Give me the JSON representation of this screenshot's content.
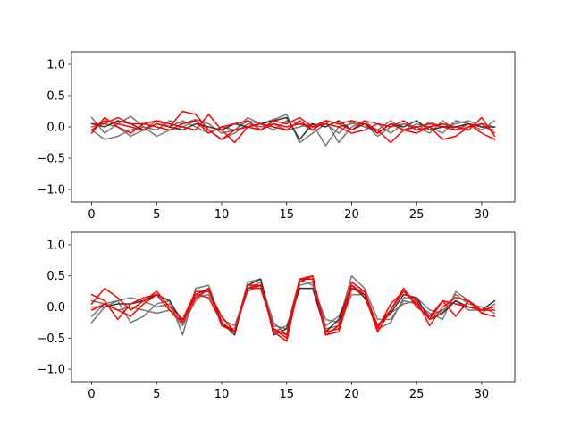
{
  "chart_data": [
    {
      "type": "line",
      "title": "",
      "xlabel": "",
      "ylabel": "",
      "xlim": [
        -1.55,
        32.55
      ],
      "ylim": [
        -1.2,
        1.2
      ],
      "xticks": [
        0,
        5,
        10,
        15,
        20,
        25,
        30
      ],
      "xtick_labels": [
        "0",
        "5",
        "10",
        "15",
        "20",
        "25",
        "30"
      ],
      "yticks": [
        -1.0,
        -0.5,
        0.0,
        0.5,
        1.0
      ],
      "ytick_labels": [
        "−1.0",
        "−0.5",
        "0.0",
        "0.5",
        "1.0"
      ],
      "grid": false,
      "x": [
        0,
        1,
        2,
        3,
        4,
        5,
        6,
        7,
        8,
        9,
        10,
        11,
        12,
        13,
        14,
        15,
        16,
        17,
        18,
        19,
        20,
        21,
        22,
        23,
        24,
        25,
        26,
        27,
        28,
        29,
        30,
        31
      ],
      "series": [
        {
          "color": "#777777",
          "values": [
            0.15,
            -0.1,
            0.05,
            0.17,
            0.0,
            -0.05,
            0.1,
            0.05,
            0.12,
            0.05,
            -0.1,
            -0.05,
            0.15,
            0.05,
            0.12,
            0.2,
            -0.25,
            -0.1,
            0.05,
            -0.1,
            0.08,
            0.0,
            -0.05,
            0.1,
            -0.05,
            0.05,
            0.0,
            -0.1,
            0.1,
            0.05,
            -0.05,
            0.1
          ]
        },
        {
          "color": "#777777",
          "values": [
            -0.05,
            -0.2,
            -0.15,
            -0.05,
            0.0,
            -0.15,
            -0.05,
            0.0,
            0.1,
            -0.05,
            -0.2,
            -0.1,
            0.05,
            0.0,
            0.05,
            -0.05,
            0.0,
            0.05,
            -0.3,
            0.0,
            0.05,
            0.05,
            -0.15,
            0.0,
            0.05,
            -0.05,
            0.08,
            0.0,
            0.05,
            0.1,
            0.0,
            -0.05
          ]
        },
        {
          "color": "#777777",
          "values": [
            0.0,
            0.05,
            0.0,
            -0.15,
            -0.05,
            0.1,
            0.0,
            0.1,
            0.0,
            -0.1,
            0.0,
            -0.05,
            0.1,
            0.05,
            -0.05,
            0.1,
            0.05,
            -0.05,
            0.1,
            -0.25,
            0.0,
            0.1,
            0.05,
            -0.1,
            0.05,
            0.0,
            -0.1,
            0.1,
            -0.05,
            0.0,
            0.05,
            0.0
          ]
        },
        {
          "color": "#333333",
          "values": [
            0.05,
            0.0,
            0.1,
            0.05,
            -0.05,
            0.05,
            0.0,
            -0.05,
            0.05,
            0.0,
            -0.05,
            0.05,
            0.0,
            0.05,
            0.1,
            0.15,
            -0.2,
            0.05,
            0.0,
            0.1,
            -0.05,
            0.05,
            -0.1,
            0.05,
            0.0,
            0.1,
            -0.05,
            0.0,
            0.0,
            0.05,
            0.0,
            0.0
          ]
        },
        {
          "color": "#ff0000",
          "values": [
            -0.05,
            0.1,
            0.05,
            0.0,
            -0.05,
            0.05,
            0.0,
            0.25,
            0.2,
            -0.05,
            -0.2,
            -0.05,
            0.0,
            0.05,
            0.0,
            -0.05,
            0.1,
            -0.05,
            0.1,
            0.05,
            0.1,
            0.05,
            -0.05,
            -0.25,
            -0.05,
            -0.1,
            0.0,
            -0.2,
            -0.15,
            0.0,
            0.05,
            -0.1
          ]
        },
        {
          "color": "#ff0000",
          "values": [
            0.05,
            0.05,
            0.15,
            0.05,
            0.05,
            0.1,
            0.05,
            0.0,
            -0.05,
            0.2,
            -0.05,
            -0.25,
            0.0,
            -0.05,
            0.1,
            0.05,
            0.15,
            0.0,
            0.05,
            0.0,
            -0.1,
            -0.05,
            0.05,
            0.0,
            0.1,
            -0.05,
            0.0,
            0.05,
            0.0,
            -0.05,
            0.15,
            -0.15
          ]
        },
        {
          "color": "#ff0000",
          "values": [
            -0.1,
            0.15,
            0.0,
            -0.1,
            0.05,
            0.0,
            -0.05,
            0.05,
            0.1,
            -0.1,
            0.0,
            0.05,
            0.1,
            -0.05,
            0.05,
            0.0,
            0.05,
            0.0,
            0.1,
            0.05,
            -0.05,
            0.1,
            -0.1,
            0.05,
            -0.05,
            0.0,
            0.05,
            0.0,
            -0.05,
            0.05,
            -0.1,
            -0.2
          ]
        }
      ]
    },
    {
      "type": "line",
      "title": "",
      "xlabel": "",
      "ylabel": "",
      "xlim": [
        -1.55,
        32.55
      ],
      "ylim": [
        -1.2,
        1.2
      ],
      "xticks": [
        0,
        5,
        10,
        15,
        20,
        25,
        30
      ],
      "xtick_labels": [
        "0",
        "5",
        "10",
        "15",
        "20",
        "25",
        "30"
      ],
      "yticks": [
        -1.0,
        -0.5,
        0.0,
        0.5,
        1.0
      ],
      "ytick_labels": [
        "−1.0",
        "−0.5",
        "0.0",
        "0.5",
        "1.0"
      ],
      "grid": false,
      "x": [
        0,
        1,
        2,
        3,
        4,
        5,
        6,
        7,
        8,
        9,
        10,
        11,
        12,
        13,
        14,
        15,
        16,
        17,
        18,
        19,
        20,
        21,
        22,
        23,
        24,
        25,
        26,
        27,
        28,
        29,
        30,
        31
      ],
      "series": [
        {
          "color": "#777777",
          "values": [
            -0.25,
            0.0,
            0.1,
            -0.25,
            -0.15,
            0.05,
            0.1,
            -0.45,
            0.3,
            0.35,
            -0.25,
            -0.4,
            0.4,
            0.45,
            -0.3,
            -0.35,
            0.45,
            0.35,
            -0.2,
            -0.25,
            0.5,
            0.3,
            -0.2,
            -0.2,
            0.1,
            0.05,
            -0.1,
            -0.2,
            0.25,
            0.1,
            -0.1,
            0.05
          ]
        },
        {
          "color": "#777777",
          "values": [
            0.1,
            0.05,
            0.1,
            0.15,
            0.1,
            0.0,
            0.05,
            -0.2,
            0.15,
            0.2,
            -0.2,
            -0.3,
            0.3,
            0.4,
            -0.25,
            -0.45,
            0.35,
            0.4,
            -0.3,
            -0.15,
            0.3,
            0.25,
            -0.3,
            -0.1,
            0.05,
            0.1,
            -0.15,
            -0.05,
            0.1,
            -0.05,
            -0.05,
            0.0
          ]
        },
        {
          "color": "#777777",
          "values": [
            -0.15,
            0.05,
            -0.05,
            0.0,
            -0.05,
            -0.1,
            -0.05,
            -0.3,
            0.1,
            0.3,
            -0.3,
            -0.35,
            0.25,
            0.35,
            -0.4,
            -0.3,
            0.3,
            0.3,
            -0.35,
            -0.3,
            0.2,
            0.2,
            -0.35,
            -0.25,
            0.15,
            0.15,
            -0.05,
            -0.1,
            0.2,
            0.05,
            0.0,
            -0.1
          ]
        },
        {
          "color": "#333333",
          "values": [
            0.0,
            0.0,
            0.05,
            0.05,
            0.1,
            0.2,
            0.1,
            -0.25,
            0.2,
            0.3,
            -0.25,
            -0.45,
            0.35,
            0.45,
            -0.45,
            -0.35,
            0.3,
            0.3,
            -0.4,
            -0.2,
            0.35,
            0.15,
            -0.3,
            -0.1,
            0.2,
            0.15,
            -0.2,
            -0.1,
            0.1,
            0.0,
            -0.05,
            0.1
          ]
        },
        {
          "color": "#ff0000",
          "values": [
            0.05,
            0.3,
            0.15,
            -0.05,
            0.1,
            0.25,
            0.0,
            -0.2,
            0.25,
            0.25,
            -0.15,
            -0.4,
            0.35,
            0.35,
            -0.35,
            -0.5,
            0.45,
            0.45,
            -0.45,
            -0.3,
            0.4,
            0.25,
            -0.35,
            0.05,
            0.25,
            0.1,
            -0.3,
            0.0,
            0.15,
            0.1,
            -0.05,
            -0.05
          ]
        },
        {
          "color": "#ff0000",
          "values": [
            0.2,
            0.1,
            -0.2,
            0.05,
            0.15,
            0.2,
            -0.05,
            -0.25,
            0.15,
            0.3,
            -0.3,
            -0.4,
            0.3,
            0.35,
            -0.4,
            -0.55,
            0.4,
            0.5,
            -0.4,
            -0.35,
            0.35,
            0.2,
            -0.4,
            -0.05,
            0.3,
            0.0,
            -0.15,
            0.1,
            -0.15,
            0.1,
            -0.1,
            -0.15
          ]
        },
        {
          "color": "#ff0000",
          "values": [
            -0.05,
            0.05,
            -0.05,
            -0.15,
            0.05,
            0.2,
            -0.05,
            -0.25,
            0.2,
            0.15,
            -0.25,
            -0.4,
            0.3,
            0.3,
            -0.35,
            -0.45,
            0.45,
            0.5,
            -0.45,
            -0.4,
            0.3,
            0.2,
            -0.3,
            -0.05,
            0.25,
            0.05,
            -0.2,
            0.1,
            0.05,
            0.0,
            -0.05,
            0.0
          ]
        }
      ]
    }
  ]
}
